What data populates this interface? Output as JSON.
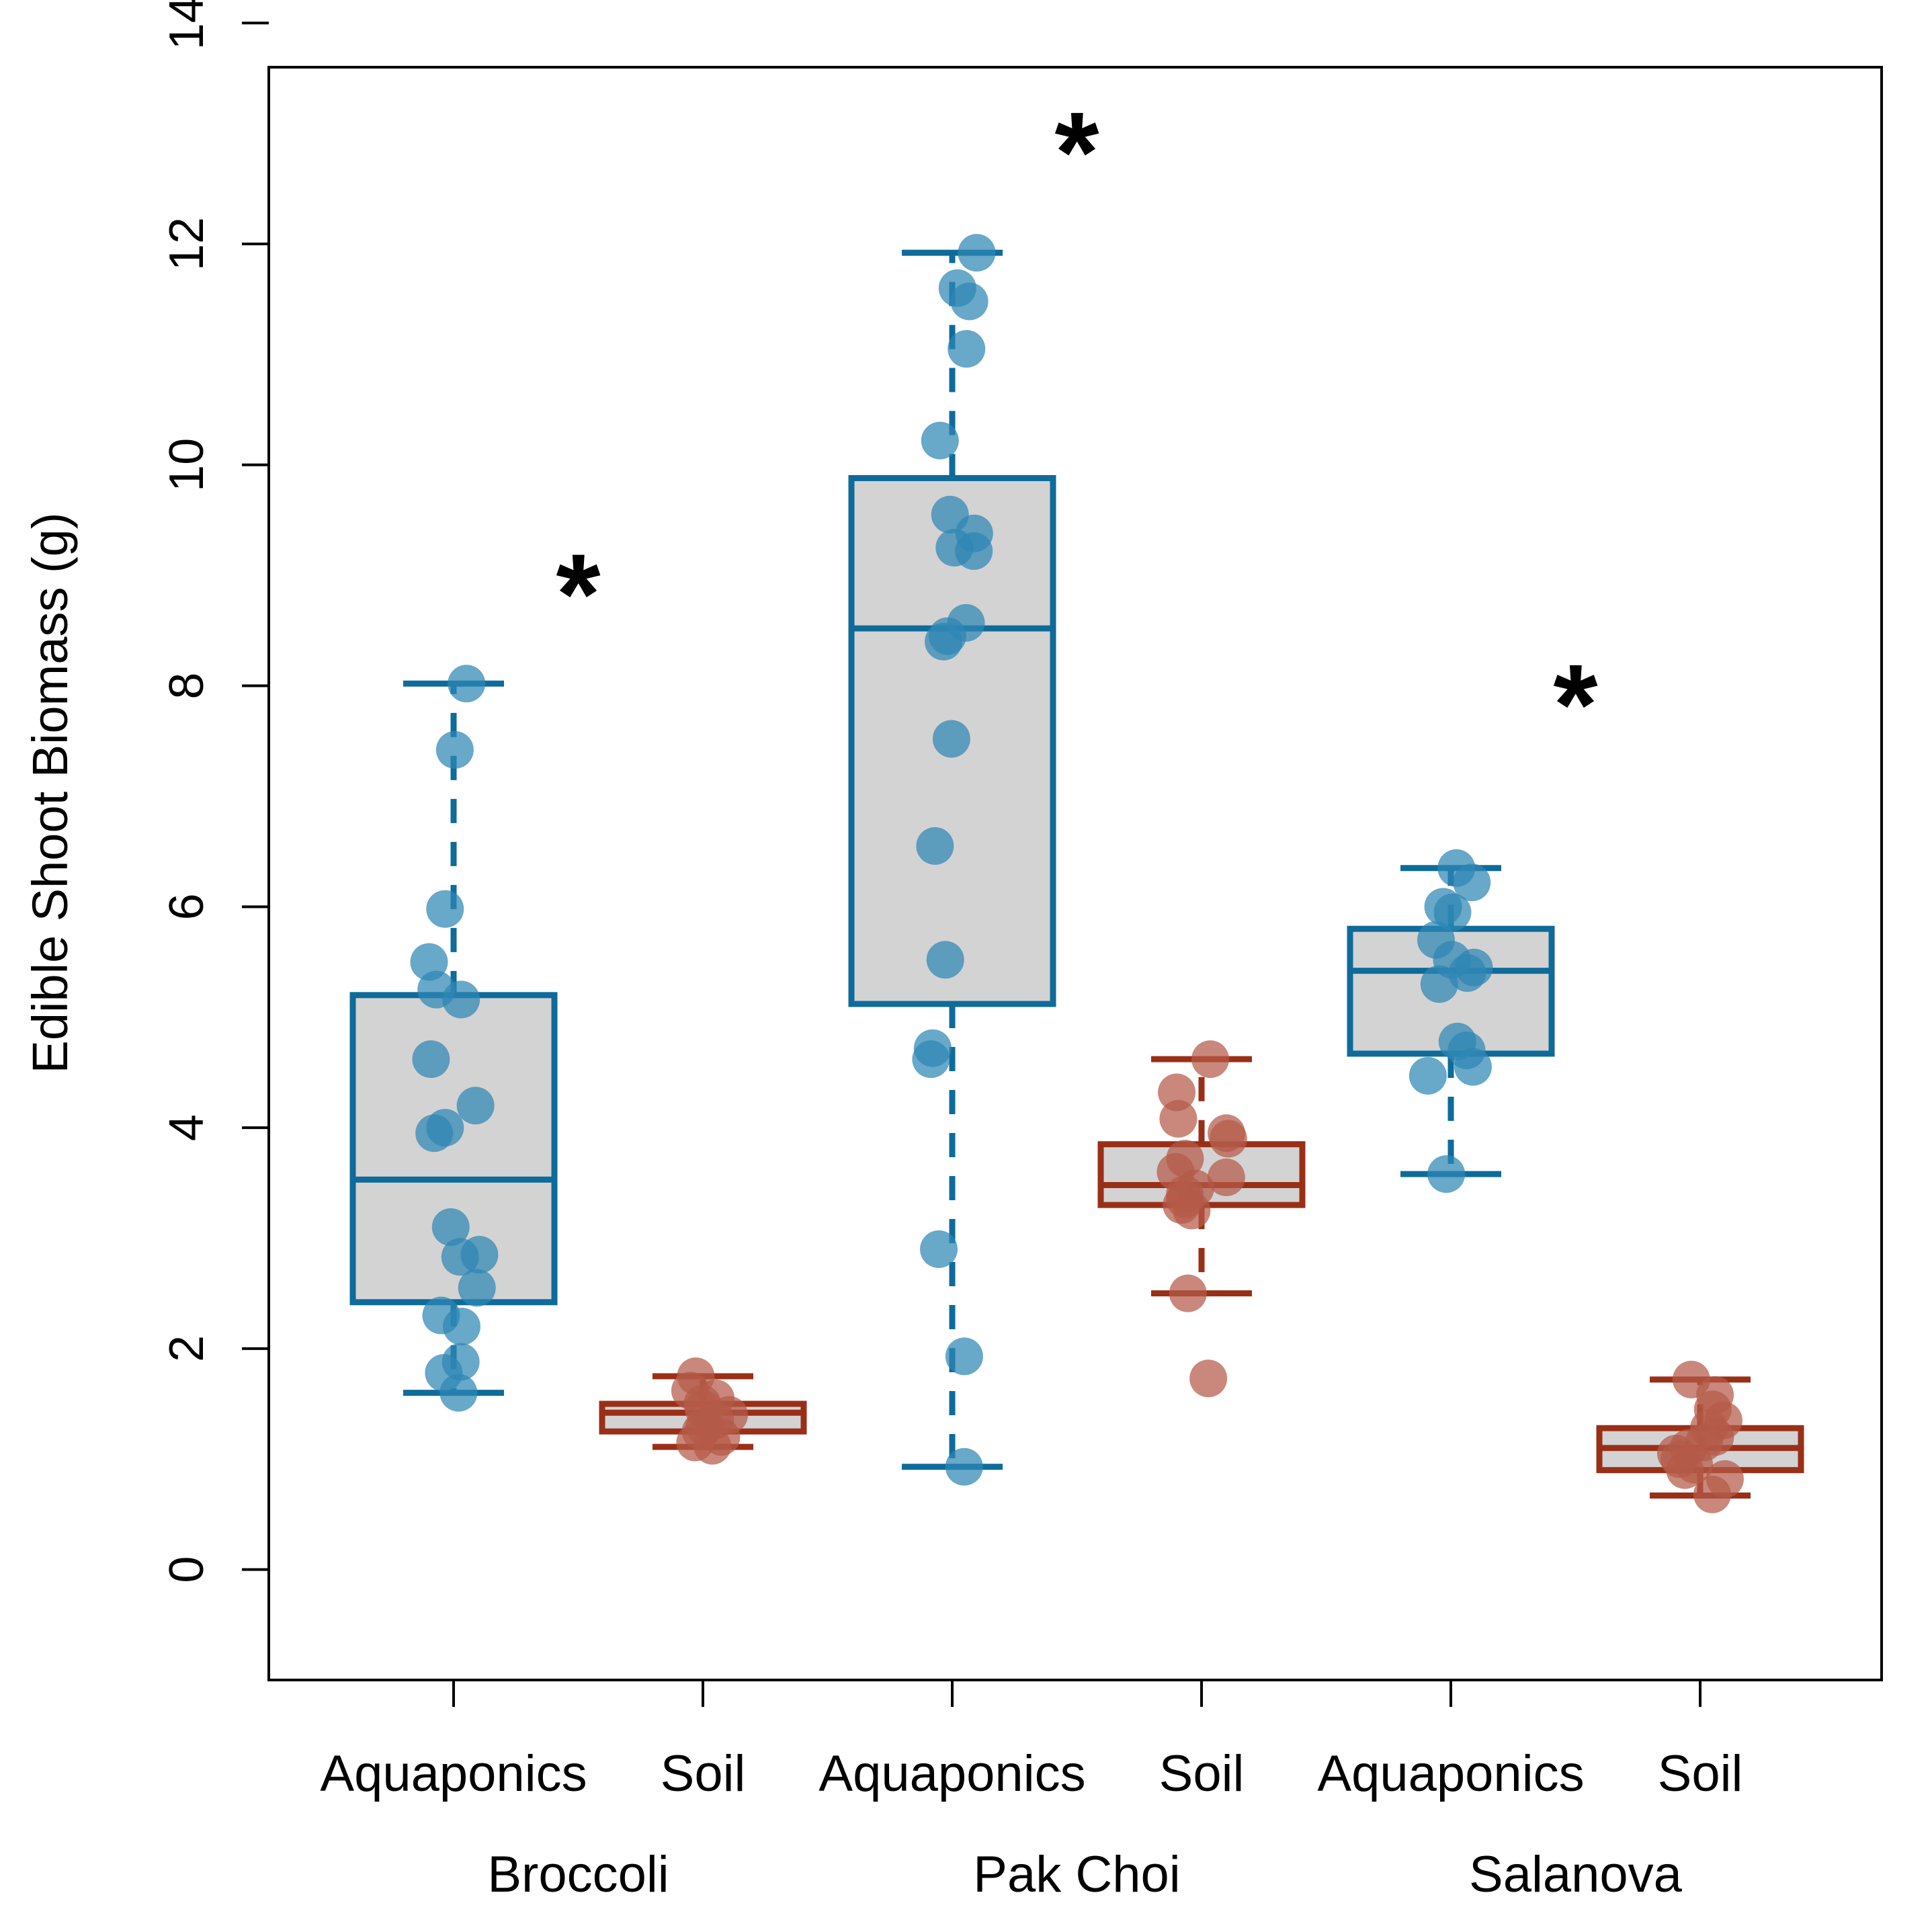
{
  "chart_data": {
    "type": "box",
    "title": "",
    "ylabel": "Edible Shoot Biomass  (g)",
    "xlabel": "",
    "ylim": [
      -1.0,
      13.6
    ],
    "yticks": [
      0,
      2,
      4,
      6,
      8,
      10,
      12,
      14
    ],
    "ytick_labels": [
      "0",
      "2",
      "4",
      "6",
      "8",
      "10",
      "12",
      "14"
    ],
    "grid": false,
    "legend": "none",
    "colors": {
      "Aquaponics": "#0e6b9a",
      "Soil": "#9a2f17",
      "Aquaponics_point": "#2e86b4",
      "Soil_point": "#b45a48",
      "box_fill": "#d3d3d3"
    },
    "groups": [
      {
        "name": "Broccoli",
        "significance": "*",
        "significance_y": 8.9,
        "boxes": [
          {
            "label": "Aquaponics",
            "treatment": "Aquaponics",
            "whisker_low": 1.6,
            "q1": 2.42,
            "median": 3.53,
            "q3": 5.2,
            "whisker_high": 8.02,
            "points": [
              8.02,
              7.42,
              5.98,
              5.5,
              5.25,
              5.16,
              4.62,
              4.2,
              4.0,
              3.95,
              3.1,
              2.85,
              2.83,
              2.55,
              2.3,
              2.2,
              1.88,
              1.78,
              1.6
            ]
          },
          {
            "label": "Soil",
            "treatment": "Soil",
            "whisker_low": 1.11,
            "q1": 1.25,
            "median": 1.42,
            "q3": 1.5,
            "whisker_high": 1.75,
            "points": [
              1.75,
              1.62,
              1.55,
              1.5,
              1.45,
              1.4,
              1.35,
              1.3,
              1.25,
              1.2,
              1.15,
              1.12
            ]
          }
        ]
      },
      {
        "name": "Pak Choi",
        "significance": "*",
        "significance_y": 12.9,
        "boxes": [
          {
            "label": "Aquaponics",
            "treatment": "Aquaponics",
            "whisker_low": 0.93,
            "q1": 5.12,
            "median": 8.52,
            "q3": 9.88,
            "whisker_high": 11.92,
            "points": [
              11.92,
              11.6,
              11.48,
              11.05,
              10.22,
              9.55,
              9.38,
              9.25,
              9.22,
              8.57,
              8.45,
              8.4,
              7.52,
              6.55,
              5.52,
              4.72,
              4.62,
              2.9,
              1.93,
              0.93
            ]
          },
          {
            "label": "Soil",
            "treatment": "Soil",
            "whisker_low": 2.5,
            "q1": 3.3,
            "median": 3.48,
            "q3": 3.85,
            "whisker_high": 4.62,
            "points": [
              4.62,
              4.32,
              4.08,
              3.95,
              3.9,
              3.72,
              3.6,
              3.55,
              3.45,
              3.4,
              3.35,
              3.3,
              3.25,
              2.5,
              1.73
            ]
          }
        ]
      },
      {
        "name": "Salanova",
        "significance": "*",
        "significance_y": 7.9,
        "boxes": [
          {
            "label": "Aquaponics",
            "treatment": "Aquaponics",
            "whisker_low": 3.58,
            "q1": 4.67,
            "median": 5.42,
            "q3": 5.8,
            "whisker_high": 6.35,
            "points": [
              6.35,
              6.22,
              6.0,
              5.95,
              5.7,
              5.52,
              5.45,
              5.4,
              5.3,
              4.78,
              4.7,
              4.55,
              4.47,
              3.58
            ]
          },
          {
            "label": "Soil",
            "treatment": "Soil",
            "whisker_low": 0.67,
            "q1": 0.9,
            "median": 1.1,
            "q3": 1.28,
            "whisker_high": 1.72,
            "points": [
              1.72,
              1.58,
              1.45,
              1.35,
              1.28,
              1.2,
              1.15,
              1.1,
              1.05,
              1.0,
              0.95,
              0.9,
              0.82,
              0.68
            ]
          }
        ]
      }
    ]
  }
}
